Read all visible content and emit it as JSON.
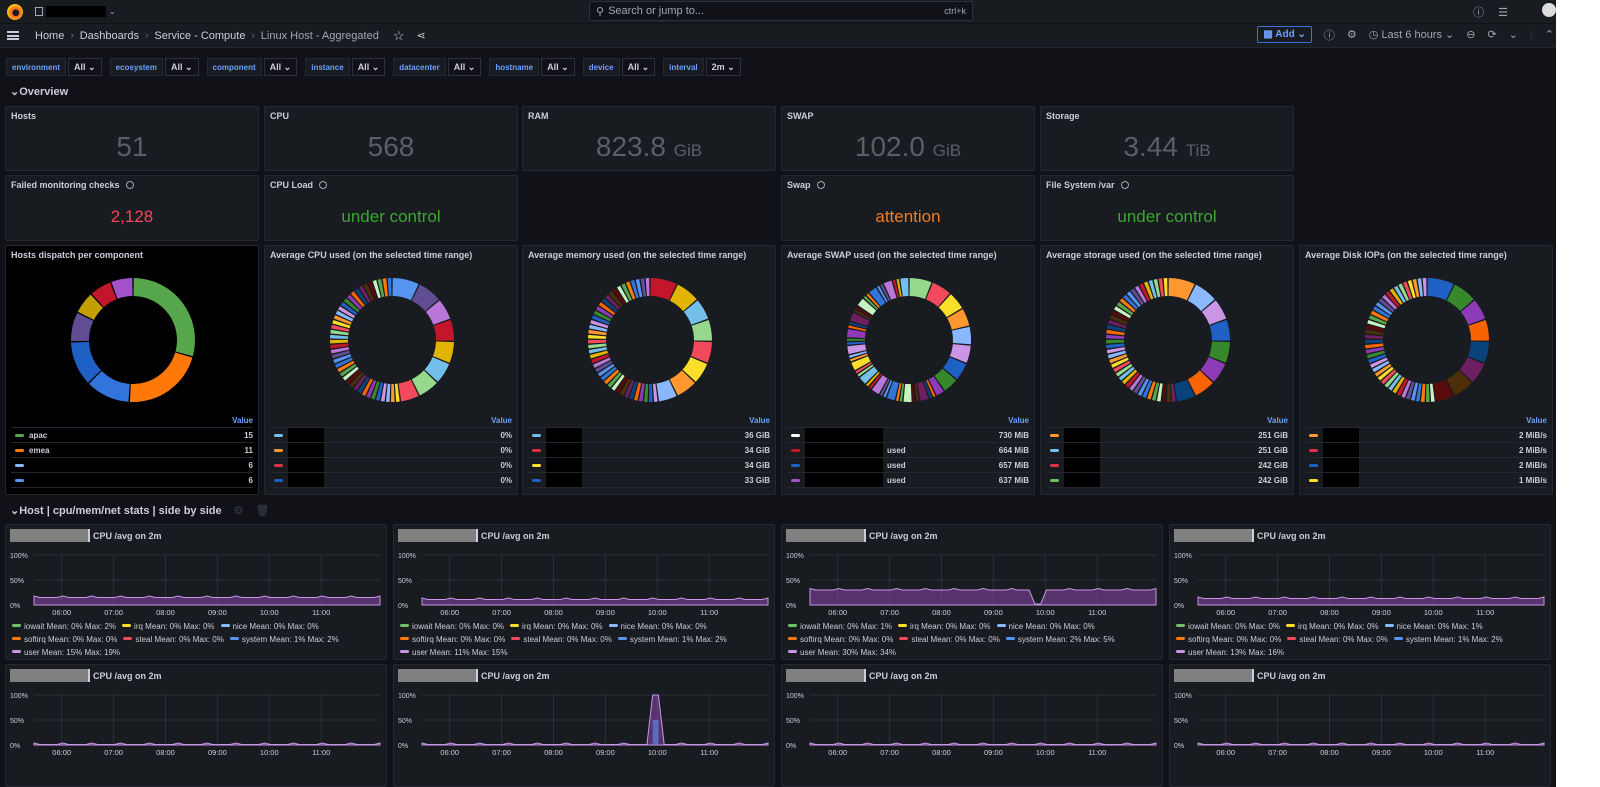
{
  "topbar": {
    "search_placeholder": "Search or jump to...",
    "shortcut": "ctrl+k"
  },
  "nav": {
    "breadcrumbs": [
      "Home",
      "Dashboards",
      "Service - Compute",
      "Linux Host - Aggregated"
    ],
    "add_label": "Add",
    "time_range": "Last 6 hours"
  },
  "variables": [
    {
      "label": "environment",
      "value": "All"
    },
    {
      "label": "ecosystem",
      "value": "All"
    },
    {
      "label": "component",
      "value": "All"
    },
    {
      "label": "instance",
      "value": "All"
    },
    {
      "label": "datacenter",
      "value": "All"
    },
    {
      "label": "hostname",
      "value": "All"
    },
    {
      "label": "device",
      "value": "All"
    },
    {
      "label": "interval",
      "value": "2m"
    }
  ],
  "rows": {
    "overview": "Overview",
    "host_stats": "Host | cpu/mem/net stats | side by side"
  },
  "stats": [
    {
      "title": "Hosts",
      "value": "51",
      "unit": ""
    },
    {
      "title": "CPU",
      "value": "568",
      "unit": ""
    },
    {
      "title": "RAM",
      "value": "823.8",
      "unit": "GiB"
    },
    {
      "title": "SWAP",
      "value": "102.0",
      "unit": "GiB"
    },
    {
      "title": "Storage",
      "value": "3.44",
      "unit": "TiB"
    }
  ],
  "status_panels": [
    {
      "title": "Failed monitoring checks",
      "value": "2,128",
      "color": "#f2495c"
    },
    {
      "title": "CPU Load",
      "value": "under control",
      "color": "#3aa831"
    },
    {
      "title": "Swap",
      "value": "attention",
      "color": "#f07d25"
    },
    {
      "title": "File System /var",
      "value": "under control",
      "color": "#3aa831"
    }
  ],
  "pies": [
    {
      "title": "Hosts dispatch per component",
      "value_header": "Value",
      "legend": [
        {
          "name": "apac",
          "value": "15",
          "color": "#56a64b"
        },
        {
          "name": "emea",
          "value": "11",
          "color": "#ff780a"
        },
        {
          "name": "",
          "value": "6",
          "color": "#8ab8ff"
        },
        {
          "name": "",
          "value": "6",
          "color": "#5794f2"
        }
      ]
    },
    {
      "title": "Average CPU used (on the selected time range)",
      "value_header": "Value",
      "legend": [
        {
          "name": "",
          "value": "0%",
          "color": "#73bfe8"
        },
        {
          "name": "",
          "value": "0%",
          "color": "#ff9830"
        },
        {
          "name": "",
          "value": "0%",
          "color": "#e02f44"
        },
        {
          "name": "",
          "value": "0%",
          "color": "#1f60c4"
        }
      ]
    },
    {
      "title": "Average memory used (on the selected time range)",
      "value_header": "Value",
      "legend": [
        {
          "name": "",
          "value": "36 GiB",
          "color": "#73bfe8"
        },
        {
          "name": "",
          "value": "34 GiB",
          "color": "#e02f44"
        },
        {
          "name": "",
          "value": "34 GiB",
          "color": "#fade2a"
        },
        {
          "name": "",
          "value": "33 GiB",
          "color": "#1f60c4"
        }
      ]
    },
    {
      "title": "Average SWAP used (on the selected time range)",
      "value_header": "Value",
      "legend": [
        {
          "name": "",
          "value": "730 MiB",
          "color": "#ffffff"
        },
        {
          "name": "used",
          "value": "664 MiB",
          "color": "#c4162a"
        },
        {
          "name": "used",
          "value": "657 MiB",
          "color": "#1f60c4"
        },
        {
          "name": "used",
          "value": "637 MiB",
          "color": "#a352cc"
        }
      ]
    },
    {
      "title": "Average storage used (on the selected time range)",
      "value_header": "Value",
      "legend": [
        {
          "name": "",
          "value": "251 GiB",
          "color": "#ff9830"
        },
        {
          "name": "",
          "value": "251 GiB",
          "color": "#73bfe8"
        },
        {
          "name": "",
          "value": "242 GiB",
          "color": "#e02f44"
        },
        {
          "name": "",
          "value": "242 GiB",
          "color": "#73bf69"
        }
      ]
    },
    {
      "title": "Average Disk IOPs (on the selected time range)",
      "value_header": "Value",
      "legend": [
        {
          "name": "",
          "value": "2 MiB/s",
          "color": "#ff9830"
        },
        {
          "name": "",
          "value": "2 MiB/s",
          "color": "#e02f44"
        },
        {
          "name": "",
          "value": "2 MiB/s",
          "color": "#1f60c4"
        },
        {
          "name": "",
          "value": "1 MiB/s",
          "color": "#fade2a"
        }
      ]
    }
  ],
  "timeseries": {
    "title": "CPU /avg on 2m",
    "y_ticks": [
      "100%",
      "50%",
      "0%"
    ],
    "x_ticks": [
      "06:00",
      "07:00",
      "08:00",
      "09:00",
      "10:00",
      "11:00"
    ],
    "panels": [
      {
        "user_level": 15,
        "legend": [
          "iowait  Mean: 0%  Max: 2%",
          "irq  Mean: 0%  Max: 0%",
          "nice  Mean: 0%  Max: 0%",
          "softirq  Mean: 0%  Max: 0%",
          "steal  Mean: 0%  Max: 0%",
          "system  Mean: 1%  Max: 2%",
          "user  Mean: 15%  Max: 19%"
        ]
      },
      {
        "user_level": 11,
        "legend": [
          "iowait  Mean: 0%  Max: 0%",
          "irq  Mean: 0%  Max: 0%",
          "nice  Mean: 0%  Max: 0%",
          "softirq  Mean: 0%  Max: 0%",
          "steal  Mean: 0%  Max: 0%",
          "system  Mean: 1%  Max: 2%",
          "user  Mean: 11%  Max: 15%"
        ]
      },
      {
        "user_level": 30,
        "legend": [
          "iowait  Mean: 0%  Max: 1%",
          "irq  Mean: 0%  Max: 0%",
          "nice  Mean: 0%  Max: 0%",
          "softirq  Mean: 0%  Max: 0%",
          "steal  Mean: 0%  Max: 0%",
          "system  Mean: 2%  Max: 5%",
          "user  Mean: 30%  Max: 34%"
        ]
      },
      {
        "user_level": 13,
        "legend": [
          "iowait  Mean: 0%  Max: 0%",
          "irq  Mean: 0%  Max: 0%",
          "nice  Mean: 0%  Max: 1%",
          "softirq  Mean: 0%  Max: 0%",
          "steal  Mean: 0%  Max: 0%",
          "system  Mean: 1%  Max: 2%",
          "user  Mean: 13%  Max: 16%"
        ]
      },
      {
        "user_level": 1,
        "legend": []
      },
      {
        "user_level": 1,
        "spike": 100,
        "legend": []
      },
      {
        "user_level": 1,
        "legend": []
      },
      {
        "user_level": 1,
        "legend": []
      }
    ],
    "legend_colors": [
      "#73bf69",
      "#fade2a",
      "#8ab8ff",
      "#ff780a",
      "#f2495c",
      "#5794f2",
      "#ca95e5"
    ]
  }
}
